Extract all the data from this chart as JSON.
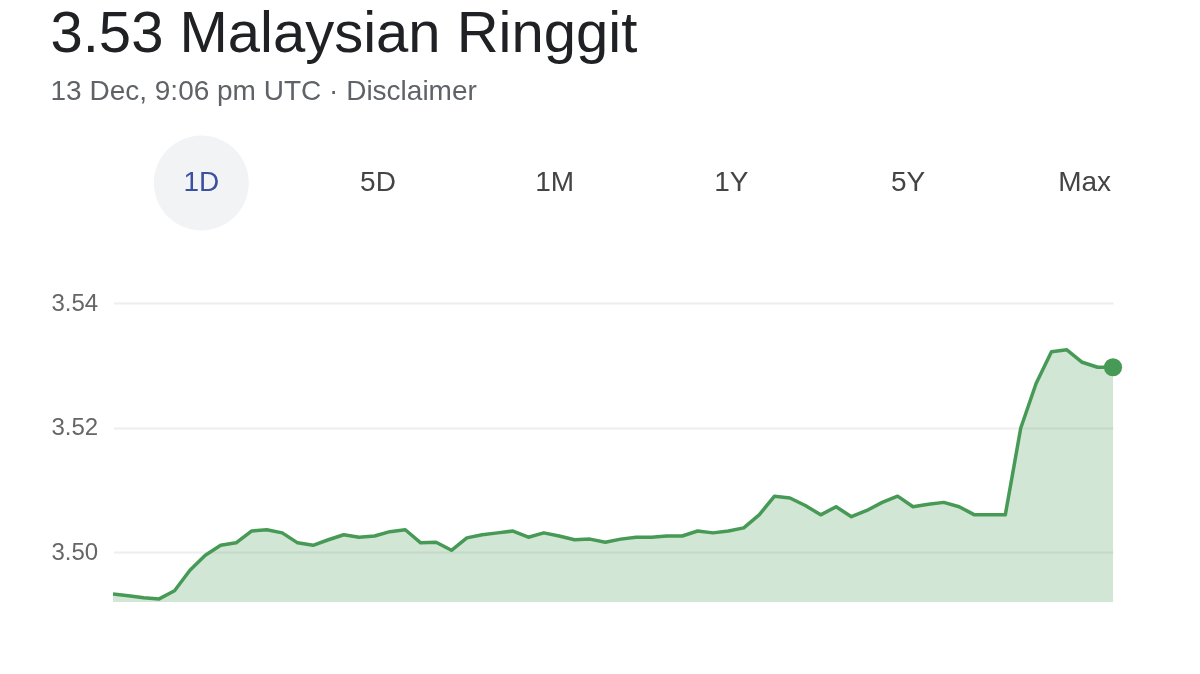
{
  "chart_data": {
    "type": "area",
    "title": "3.53 Malaysian Ringgit",
    "subtitle": "13 Dec, 9:06 pm UTC · Disclaimer",
    "annotations": [
      "1D",
      "5D",
      "1M",
      "1Y",
      "5Y",
      "Max"
    ],
    "categories": [
      null,
      null,
      null,
      null,
      null,
      null,
      null,
      null,
      null,
      null,
      null,
      null,
      null,
      null,
      null,
      null,
      null,
      null,
      null,
      null,
      null,
      null,
      null,
      null,
      null,
      null,
      null,
      null,
      null,
      null,
      null,
      null,
      null,
      null,
      null,
      null,
      null,
      null,
      null,
      null,
      null,
      null,
      null,
      null,
      null,
      null,
      null,
      null,
      null,
      null,
      null,
      null,
      null,
      null,
      null,
      null,
      null,
      null,
      null,
      null,
      null,
      null,
      null,
      null,
      null,
      null
    ],
    "series": [
      {
        "color": "#479a55",
        "values": [
          3.4933,
          3.493,
          3.4927,
          3.4925,
          3.4938,
          3.4971,
          3.4995,
          3.5011,
          3.5015,
          3.5034,
          3.5036,
          3.5031,
          3.5015,
          3.5011,
          3.502,
          3.5028,
          3.5024,
          3.5026,
          3.5033,
          3.5036,
          3.5015,
          3.5016,
          3.5003,
          3.5023,
          3.5028,
          3.5031,
          3.5034,
          3.5024,
          3.5031,
          3.5026,
          3.502,
          3.5021,
          3.5016,
          3.5021,
          3.5024,
          3.5024,
          3.5026,
          3.5026,
          3.5034,
          3.5031,
          3.5034,
          3.5039,
          3.506,
          3.509,
          3.5087,
          3.5075,
          3.506,
          3.5073,
          3.5057,
          3.5067,
          3.508,
          3.509,
          3.5073,
          3.5077,
          3.508,
          3.5073,
          3.506,
          3.506,
          3.506,
          3.5199,
          3.5271,
          3.5322,
          3.5325,
          3.5305,
          3.5297,
          3.5297
        ]
      }
    ],
    "ylim": [
      3.492,
      3.545
    ],
    "yticks": [
      {
        "value": 3.5,
        "label": "3.50"
      },
      3.52,
      3.54
    ],
    "grid": "y",
    "tick_labels": "y"
  }
}
